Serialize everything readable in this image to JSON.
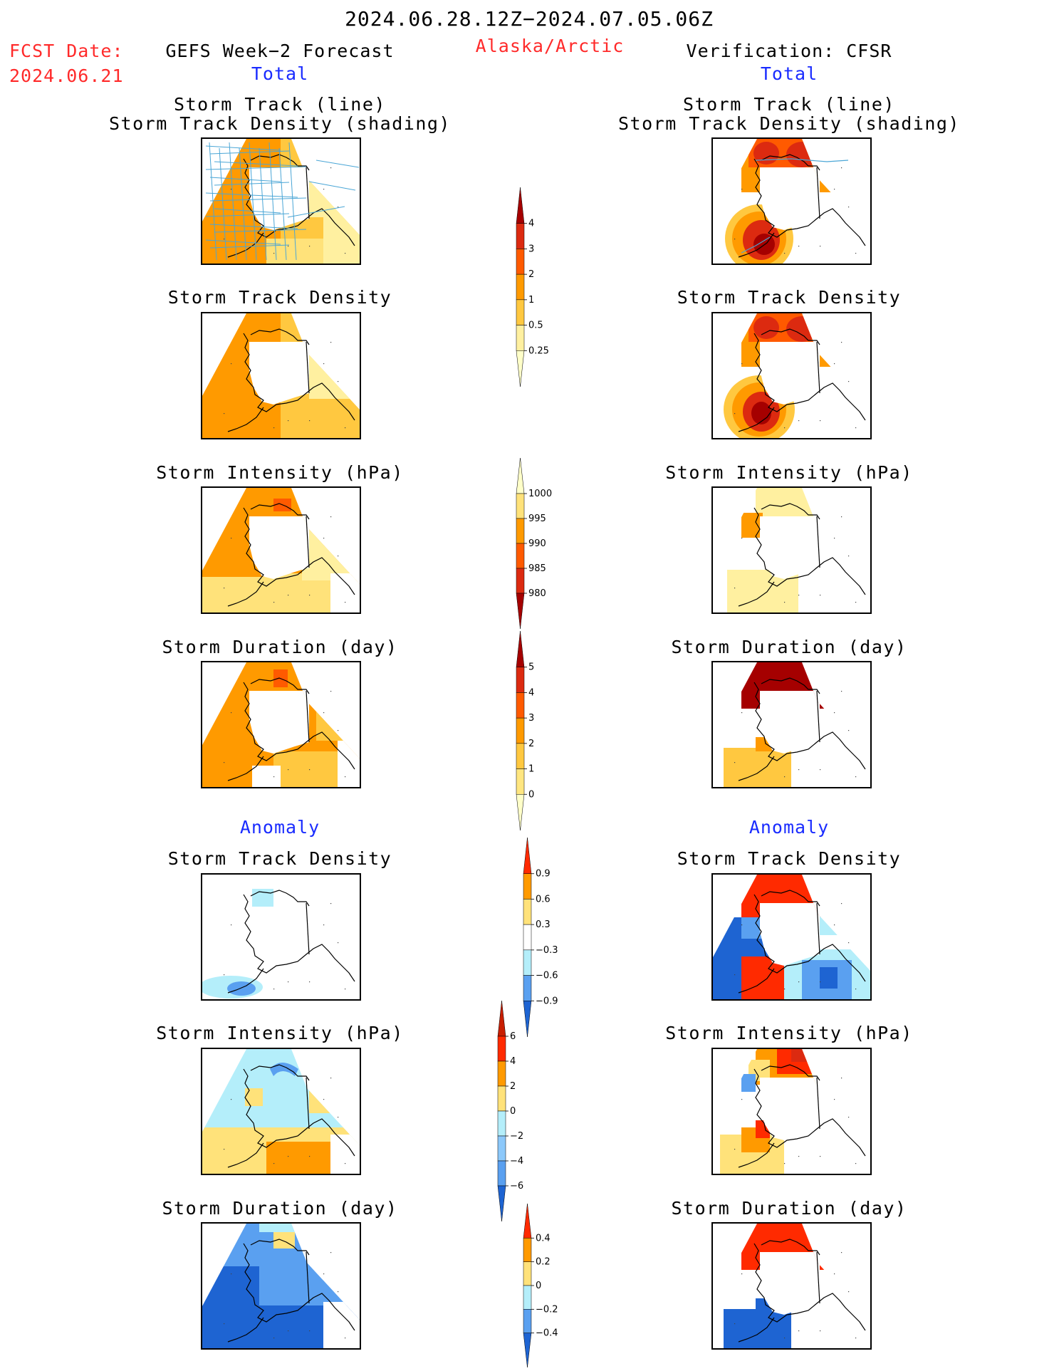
{
  "header": {
    "period": "2024.06.28.12Z−2024.07.05.06Z",
    "fcst_date_label": "FCST Date:",
    "fcst_date_value": "2024.06.21",
    "left_title": "GEFS Week−2 Forecast",
    "region": "Alaska/Arctic",
    "right_title": "Verification: CFSR",
    "left_total": "Total",
    "right_total": "Total"
  },
  "anomaly_label_left": "Anomaly",
  "anomaly_label_right": "Anomaly",
  "panels": {
    "left": [
      {
        "title_line1": "Storm Track (line)",
        "title_line2": "Storm Track Density (shading)"
      },
      {
        "title_line1": "Storm Track Density"
      },
      {
        "title_line1": "Storm Intensity (hPa)"
      },
      {
        "title_line1": "Storm Duration (day)"
      },
      {
        "title_line1": "Storm Track Density"
      },
      {
        "title_line1": "Storm Intensity (hPa)"
      },
      {
        "title_line1": "Storm Duration (day)"
      }
    ],
    "right": [
      {
        "title_line1": "Storm Track (line)",
        "title_line2": "Storm Track Density (shading)"
      },
      {
        "title_line1": "Storm Track Density"
      },
      {
        "title_line1": "Storm Intensity (hPa)"
      },
      {
        "title_line1": "Storm Duration (day)"
      },
      {
        "title_line1": "Storm Track Density"
      },
      {
        "title_line1": "Storm Intensity (hPa)"
      },
      {
        "title_line1": "Storm Duration (day)"
      }
    ]
  },
  "colorbars": [
    {
      "id": "density",
      "ticks": [
        "4",
        "3",
        "2",
        "1",
        "0.5",
        "0.25"
      ],
      "colors": [
        "#a50000",
        "#dc2a10",
        "#ff5a00",
        "#ff9a00",
        "#ffc840",
        "#fff0a0",
        "#ffffc8"
      ]
    },
    {
      "id": "intensity",
      "ticks": [
        "1000",
        "995",
        "990",
        "985",
        "980"
      ],
      "colors": [
        "#ffffc8",
        "#ffe27a",
        "#ff9a00",
        "#ff5a00",
        "#dc2a10",
        "#a50000"
      ]
    },
    {
      "id": "duration",
      "ticks": [
        "5",
        "4",
        "3",
        "2",
        "1",
        "0"
      ],
      "colors": [
        "#a50000",
        "#dc2a10",
        "#ff5a00",
        "#ff9a00",
        "#ffc840",
        "#ffe680",
        "#ffffc8"
      ]
    },
    {
      "id": "anom-density",
      "ticks": [
        "0.9",
        "0.6",
        "0.3",
        "−0.3",
        "−0.6",
        "−0.9"
      ],
      "colors": [
        "#ff2a00",
        "#ff9a00",
        "#ffe27a",
        "#ffffff",
        "#b4eefa",
        "#5aa0f0",
        "#1e64d2"
      ]
    },
    {
      "id": "anom-intensity",
      "ticks": [
        "6",
        "4",
        "2",
        "0",
        "−2",
        "−4",
        "−6"
      ],
      "colors": [
        "#c81e00",
        "#ff2a00",
        "#ff9a00",
        "#ffe27a",
        "#b4eefa",
        "#8cc8fa",
        "#5aa0f0",
        "#1e64d2"
      ]
    },
    {
      "id": "anom-duration",
      "ticks": [
        "0.4",
        "0.2",
        "0",
        "−0.2",
        "−0.4"
      ],
      "colors": [
        "#ff2a00",
        "#ff9a00",
        "#ffe27a",
        "#b4eefa",
        "#5aa0f0",
        "#1e64d2"
      ]
    }
  ]
}
